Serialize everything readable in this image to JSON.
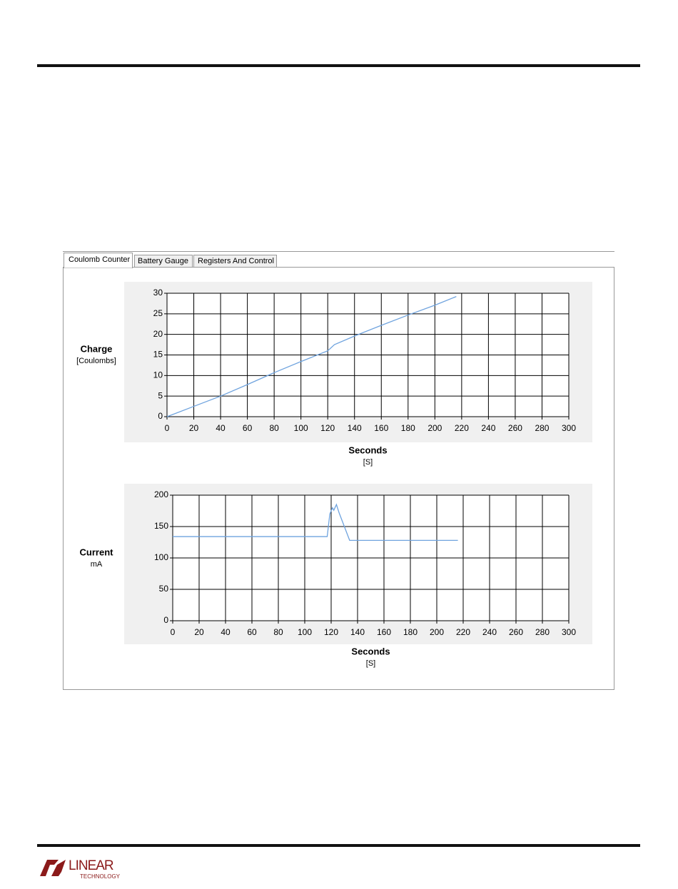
{
  "tabs": [
    "Coulomb Counter",
    "Battery Gauge",
    "Registers And Control"
  ],
  "logo": {
    "text": "LINEAR",
    "subtext": "TECHNOLOGY"
  },
  "chart_data": [
    {
      "type": "line",
      "y_label": "Charge",
      "y_unit": "[Coulombs]",
      "x_label": "Seconds",
      "x_unit": "[S]",
      "x": [
        0,
        20,
        40,
        60,
        80,
        100,
        120,
        125,
        140,
        160,
        180,
        200,
        216
      ],
      "series": [
        {
          "color": "#6fa3de",
          "values": [
            0,
            2.5,
            5,
            7.8,
            10.7,
            13.4,
            16,
            17.5,
            19.6,
            22.2,
            24.7,
            27.1,
            29.2
          ]
        }
      ],
      "xlim": [
        0,
        300
      ],
      "xticks": [
        0,
        20,
        40,
        60,
        80,
        100,
        120,
        140,
        160,
        180,
        200,
        220,
        240,
        260,
        280,
        300
      ],
      "ylim": [
        0,
        30
      ],
      "yticks": [
        0,
        5,
        10,
        15,
        20,
        25,
        30
      ],
      "grid": true
    },
    {
      "type": "line",
      "y_label": "Current",
      "y_unit": "mA",
      "x_label": "Seconds",
      "x_unit": "[S]",
      "x": [
        0,
        117,
        119,
        121,
        122,
        124,
        126,
        130,
        134,
        216
      ],
      "series": [
        {
          "color": "#6fa3de",
          "values": [
            134,
            134,
            170,
            180,
            176,
            185,
            172,
            150,
            128,
            128
          ]
        }
      ],
      "xlim": [
        0,
        300
      ],
      "xticks": [
        0,
        20,
        40,
        60,
        80,
        100,
        120,
        140,
        160,
        180,
        200,
        220,
        240,
        260,
        280,
        300
      ],
      "ylim": [
        0,
        200
      ],
      "yticks": [
        0,
        50,
        100,
        150,
        200
      ],
      "grid": true
    }
  ]
}
